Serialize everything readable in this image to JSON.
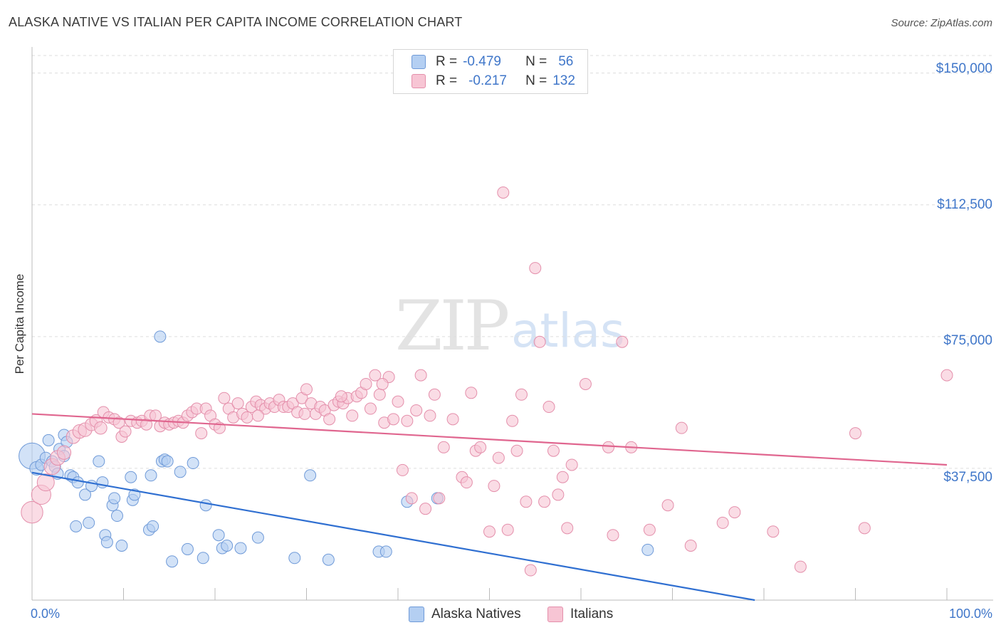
{
  "title": "ALASKA NATIVE VS ITALIAN PER CAPITA INCOME CORRELATION CHART",
  "source": "Source: ZipAtlas.com",
  "watermark": {
    "zip": "ZIP",
    "atlas": "atlas"
  },
  "stats": [
    {
      "series": "Alaska Natives",
      "r_label": "R =",
      "r": "-0.479",
      "n_label": "N =",
      "n": "56"
    },
    {
      "series": "Italians",
      "r_label": "R =",
      "r": "-0.217",
      "n_label": "N =",
      "n": "132"
    }
  ],
  "legend": [
    "Alaska Natives",
    "Italians"
  ],
  "colors": {
    "blue_fill": "#b4cff2",
    "blue_stroke": "#6f9ad8",
    "blue_line": "#2f6fd1",
    "pink_fill": "#f7c5d4",
    "pink_stroke": "#e48fab",
    "pink_line": "#e0668f",
    "grid": "#dddddd",
    "label": "#3f76c9"
  },
  "chart_data": {
    "type": "scatter",
    "title": "ALASKA NATIVE VS ITALIAN PER CAPITA INCOME CORRELATION CHART",
    "xlabel": "",
    "ylabel": "Per Capita Income",
    "xlim": [
      0,
      100
    ],
    "ylim": [
      0,
      155000
    ],
    "x_tick_labels": [
      "0.0%",
      "100.0%"
    ],
    "y_ticks": [
      37500,
      75000,
      112500,
      150000
    ],
    "y_tick_labels": [
      "$37,500",
      "$75,000",
      "$112,500",
      "$150,000"
    ],
    "grid": true,
    "series": [
      {
        "name": "Alaska Natives",
        "trend": {
          "x": [
            0,
            79
          ],
          "y": [
            36300,
            0
          ]
        },
        "points": [
          [
            0,
            41000,
            2.3
          ],
          [
            0.5,
            37500,
            1.2
          ],
          [
            1,
            38500,
            1.0
          ],
          [
            1.5,
            40500,
            1.0
          ],
          [
            1.8,
            45500,
            1.0
          ],
          [
            2.2,
            39500,
            1.0
          ],
          [
            2.5,
            38000,
            1.0
          ],
          [
            2.8,
            36000,
            1.0
          ],
          [
            3,
            43000,
            1.0
          ],
          [
            3.5,
            41000,
            1.0
          ],
          [
            3.5,
            47000,
            1.0
          ],
          [
            3.8,
            45000,
            1.0
          ],
          [
            4.2,
            35500,
            1.0
          ],
          [
            4.5,
            35000,
            1.0
          ],
          [
            4.8,
            21000,
            1.0
          ],
          [
            5,
            33500,
            1.0
          ],
          [
            5.8,
            30000,
            1.0
          ],
          [
            6.2,
            22000,
            1.0
          ],
          [
            6.5,
            32500,
            1.0
          ],
          [
            7.3,
            39500,
            1.0
          ],
          [
            7.7,
            33500,
            1.0
          ],
          [
            8,
            18500,
            1.0
          ],
          [
            8.2,
            16500,
            1.0
          ],
          [
            8.8,
            27000,
            1.0
          ],
          [
            9,
            29000,
            1.0
          ],
          [
            9.3,
            24000,
            1.0
          ],
          [
            9.8,
            15500,
            1.0
          ],
          [
            10.8,
            35000,
            1.0
          ],
          [
            11,
            28500,
            1.0
          ],
          [
            11.2,
            30000,
            1.0
          ],
          [
            12.8,
            20000,
            1.0
          ],
          [
            13,
            35500,
            1.0
          ],
          [
            13.2,
            21000,
            1.0
          ],
          [
            14,
            75000,
            1.0
          ],
          [
            14.2,
            39500,
            1.0
          ],
          [
            14.5,
            40000,
            1.0
          ],
          [
            14.8,
            39500,
            1.0
          ],
          [
            15.3,
            11000,
            1.0
          ],
          [
            16.2,
            36500,
            1.0
          ],
          [
            17,
            14500,
            1.0
          ],
          [
            17.6,
            39000,
            1.0
          ],
          [
            18.7,
            12000,
            1.0
          ],
          [
            19,
            27000,
            1.0
          ],
          [
            20.4,
            18500,
            1.0
          ],
          [
            20.8,
            14800,
            1.0
          ],
          [
            21.3,
            15500,
            1.0
          ],
          [
            22.8,
            14800,
            1.0
          ],
          [
            24.7,
            17800,
            1.0
          ],
          [
            28.7,
            12000,
            1.0
          ],
          [
            30.4,
            35500,
            1.0
          ],
          [
            32.4,
            11500,
            1.0
          ],
          [
            37.9,
            13800,
            1.0
          ],
          [
            38.7,
            13800,
            1.0
          ],
          [
            41,
            28000,
            1.0
          ],
          [
            44.3,
            29000,
            1.0
          ],
          [
            67.3,
            14300,
            1.0
          ]
        ]
      },
      {
        "name": "Italians",
        "trend": {
          "x": [
            0,
            100
          ],
          "y": [
            53000,
            38500
          ]
        },
        "points": [
          [
            0,
            25000,
            1.9
          ],
          [
            1,
            30000,
            1.7
          ],
          [
            1.5,
            33500,
            1.5
          ],
          [
            2.2,
            38000,
            1.4
          ],
          [
            2.8,
            40500,
            1.3
          ],
          [
            3.5,
            42000,
            1.2
          ],
          [
            4.5,
            46500,
            1.2
          ],
          [
            5.2,
            48000,
            1.2
          ],
          [
            5.8,
            48500,
            1.2
          ],
          [
            6.5,
            50000,
            1.1
          ],
          [
            7,
            51000,
            1.1
          ],
          [
            7.5,
            49000,
            1.1
          ],
          [
            7.8,
            53500,
            1.0
          ],
          [
            8.4,
            52000,
            1.0
          ],
          [
            9,
            51500,
            1.0
          ],
          [
            9.5,
            50500,
            1.0
          ],
          [
            9.8,
            46500,
            1.0
          ],
          [
            10.2,
            48000,
            1.0
          ],
          [
            10.8,
            51000,
            1.0
          ],
          [
            11.5,
            50500,
            1.0
          ],
          [
            12,
            51000,
            1.0
          ],
          [
            12.5,
            50000,
            1.0
          ],
          [
            12.9,
            52500,
            1.0
          ],
          [
            13.5,
            52500,
            1.0
          ],
          [
            14,
            49500,
            1.0
          ],
          [
            14.5,
            50500,
            1.0
          ],
          [
            15,
            50000,
            1.0
          ],
          [
            15.5,
            50500,
            1.0
          ],
          [
            16,
            51000,
            1.0
          ],
          [
            16.5,
            50500,
            1.0
          ],
          [
            17,
            52500,
            1.0
          ],
          [
            17.5,
            53500,
            1.0
          ],
          [
            18,
            54500,
            1.0
          ],
          [
            18.5,
            47500,
            1.0
          ],
          [
            19,
            54500,
            1.0
          ],
          [
            19.5,
            52500,
            1.0
          ],
          [
            20,
            50000,
            1.0
          ],
          [
            20.5,
            49000,
            1.0
          ],
          [
            21,
            57500,
            1.0
          ],
          [
            21.5,
            54500,
            1.0
          ],
          [
            22,
            52000,
            1.0
          ],
          [
            22.5,
            56000,
            1.0
          ],
          [
            23,
            53000,
            1.0
          ],
          [
            23.5,
            52000,
            1.0
          ],
          [
            24,
            55000,
            1.0
          ],
          [
            24.5,
            56500,
            1.0
          ],
          [
            25,
            55500,
            1.0
          ],
          [
            25.5,
            54500,
            1.0
          ],
          [
            26,
            56000,
            1.0
          ],
          [
            26.5,
            55000,
            1.0
          ],
          [
            27,
            57000,
            1.0
          ],
          [
            27.5,
            55000,
            1.0
          ],
          [
            28,
            55000,
            1.0
          ],
          [
            28.5,
            56000,
            1.0
          ],
          [
            29,
            53500,
            1.0
          ],
          [
            29.5,
            57500,
            1.0
          ],
          [
            30,
            60000,
            1.0
          ],
          [
            30.5,
            56000,
            1.0
          ],
          [
            31,
            53000,
            1.0
          ],
          [
            31.5,
            55000,
            1.0
          ],
          [
            32,
            54000,
            1.0
          ],
          [
            32.5,
            51500,
            1.0
          ],
          [
            33,
            55500,
            1.0
          ],
          [
            33.5,
            56500,
            1.0
          ],
          [
            34,
            56000,
            1.0
          ],
          [
            34.5,
            57500,
            1.0
          ],
          [
            35,
            52500,
            1.0
          ],
          [
            35.5,
            58000,
            1.0
          ],
          [
            36,
            59000,
            1.0
          ],
          [
            36.5,
            61500,
            1.0
          ],
          [
            37,
            54500,
            1.0
          ],
          [
            37.5,
            64000,
            1.0
          ],
          [
            38,
            58500,
            1.0
          ],
          [
            38.5,
            50500,
            1.0
          ],
          [
            39,
            63500,
            1.0
          ],
          [
            39.5,
            51500,
            1.0
          ],
          [
            40,
            56500,
            1.0
          ],
          [
            40.5,
            37000,
            1.0
          ],
          [
            41,
            51000,
            1.0
          ],
          [
            41.5,
            29000,
            1.0
          ],
          [
            42,
            54000,
            1.0
          ],
          [
            42.5,
            64000,
            1.0
          ],
          [
            43,
            26000,
            1.0
          ],
          [
            43.5,
            52500,
            1.0
          ],
          [
            44,
            58500,
            1.0
          ],
          [
            44.5,
            29000,
            1.0
          ],
          [
            45,
            43500,
            1.0
          ],
          [
            46,
            51500,
            1.0
          ],
          [
            47,
            35000,
            1.0
          ],
          [
            47.5,
            33500,
            1.0
          ],
          [
            48,
            59000,
            1.0
          ],
          [
            48.5,
            42500,
            1.0
          ],
          [
            49,
            43500,
            1.0
          ],
          [
            50,
            19500,
            1.0
          ],
          [
            50.5,
            32500,
            1.0
          ],
          [
            51,
            40500,
            1.0
          ],
          [
            51.5,
            116000,
            1.0
          ],
          [
            52,
            20000,
            1.0
          ],
          [
            52.5,
            51000,
            1.0
          ],
          [
            53,
            42500,
            1.0
          ],
          [
            53.5,
            58500,
            1.0
          ],
          [
            54,
            28000,
            1.0
          ],
          [
            54.5,
            8500,
            1.0
          ],
          [
            55,
            94500,
            1.0
          ],
          [
            55.5,
            73500,
            1.0
          ],
          [
            56,
            28000,
            1.0
          ],
          [
            56.5,
            55000,
            1.0
          ],
          [
            57,
            42500,
            1.0
          ],
          [
            57.5,
            30000,
            1.0
          ],
          [
            58,
            35000,
            1.0
          ],
          [
            58.5,
            20500,
            1.0
          ],
          [
            59,
            38500,
            1.0
          ],
          [
            60.5,
            61500,
            1.0
          ],
          [
            63,
            43500,
            1.0
          ],
          [
            63.5,
            18500,
            1.0
          ],
          [
            64.5,
            73500,
            1.0
          ],
          [
            65.5,
            43500,
            1.0
          ],
          [
            67.5,
            20000,
            1.0
          ],
          [
            69.5,
            27000,
            1.0
          ],
          [
            71,
            49000,
            1.0
          ],
          [
            72,
            15500,
            1.0
          ],
          [
            75.5,
            22000,
            1.0
          ],
          [
            76.8,
            25000,
            1.0
          ],
          [
            81,
            19500,
            1.0
          ],
          [
            84,
            9500,
            1.0
          ],
          [
            90,
            47500,
            1.0
          ],
          [
            91,
            20500,
            1.0
          ],
          [
            100,
            64000,
            1.0
          ],
          [
            29.8,
            53000,
            1.0
          ],
          [
            24.7,
            52500,
            1.0
          ],
          [
            33.8,
            58000,
            1.0
          ],
          [
            38.3,
            61500,
            1.0
          ]
        ]
      }
    ]
  }
}
